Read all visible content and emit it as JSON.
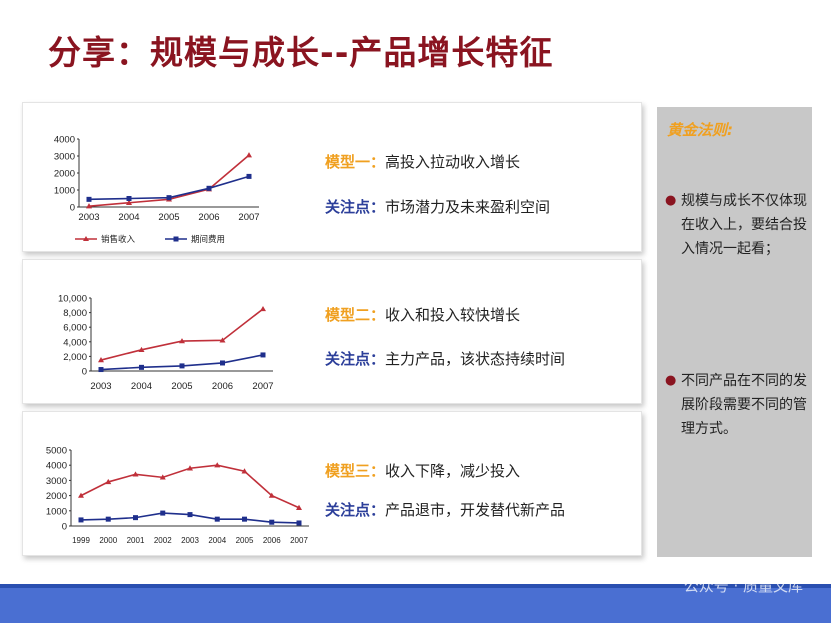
{
  "title": "分享：规模与成长--产品增长特征",
  "colors": {
    "revenue": "#c0303a",
    "expense": "#1f2f8c",
    "model_label": "#f0a020",
    "focus_label": "#2c3f9a",
    "title": "#8a1420"
  },
  "models": [
    {
      "label": "模型一：",
      "text": "高投入拉动收入增长",
      "focus_label": "关注点：",
      "focus_text": "市场潜力及未来盈利空间"
    },
    {
      "label": "模型二：",
      "text": "收入和投入较快增长",
      "focus_label": "关注点：",
      "focus_text": "主力产品，该状态持续时间"
    },
    {
      "label": "模型三：",
      "text": "收入下降，减少投入",
      "focus_label": "关注点：",
      "focus_text": "产品退市，开发替代新产品"
    }
  ],
  "sidebar": {
    "title": "黄金法则:",
    "bullets": [
      "规模与成长不仅体现在收入上，要结合投入情况一起看；",
      "不同产品在不同的发展阶段需要不同的管理方式。"
    ]
  },
  "watermark": "公众号 · 质量文库",
  "chart_data": [
    {
      "type": "line",
      "x": [
        "2003",
        "2004",
        "2005",
        "2006",
        "2007"
      ],
      "ylim": [
        0,
        4000
      ],
      "yticks": [
        0,
        1000,
        2000,
        3000,
        4000
      ],
      "ytick_labels": [
        "0",
        "1000",
        "2000",
        "3000",
        "4000"
      ],
      "series": [
        {
          "name": "销售收入",
          "values": [
            50,
            250,
            450,
            1050,
            3050
          ]
        },
        {
          "name": "期间费用",
          "values": [
            450,
            500,
            550,
            1100,
            1800
          ]
        }
      ],
      "legend": "bottom"
    },
    {
      "type": "line",
      "x": [
        "2003",
        "2004",
        "2005",
        "2006",
        "2007"
      ],
      "ylim": [
        0,
        10000
      ],
      "yticks": [
        0,
        2000,
        4000,
        6000,
        8000,
        10000
      ],
      "ytick_labels": [
        "0",
        "2,000",
        "4,000",
        "6,000",
        "8,000",
        "10,000"
      ],
      "series": [
        {
          "values": [
            1500,
            2900,
            4100,
            4200,
            8500
          ]
        },
        {
          "values": [
            200,
            500,
            700,
            1100,
            2200
          ]
        }
      ]
    },
    {
      "type": "line",
      "x": [
        "1999",
        "2000",
        "2001",
        "2002",
        "2003",
        "2004",
        "2005",
        "2006",
        "2007"
      ],
      "ylim": [
        0,
        5000
      ],
      "yticks": [
        0,
        1000,
        2000,
        3000,
        4000,
        5000
      ],
      "ytick_labels": [
        "0",
        "1000",
        "2000",
        "3000",
        "4000",
        "5000"
      ],
      "series": [
        {
          "values": [
            2000,
            2900,
            3400,
            3200,
            3800,
            4000,
            3600,
            2000,
            1200
          ]
        },
        {
          "values": [
            400,
            450,
            550,
            850,
            750,
            450,
            450,
            250,
            200
          ]
        }
      ]
    }
  ]
}
